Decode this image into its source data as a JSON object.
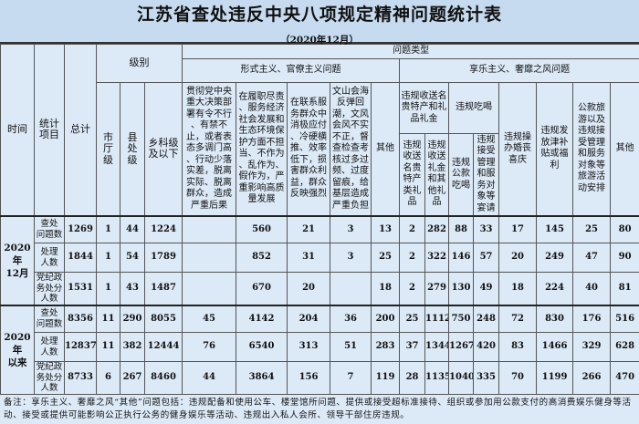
{
  "title": "江苏省查处违反中央八项规定精神问题统计表",
  "subtitle": "（2020年12月）",
  "header": {
    "time": "时间",
    "item": "统计项目",
    "total": "总计",
    "level": "级别",
    "problem_type": "问题类型",
    "formalism": "形式主义、官僚主义问题",
    "hedonism": "享乐主义、奢靡之风问题",
    "levels": [
      "市\n厅\n级",
      "县\n处\n级",
      "乡科级\n及以下"
    ],
    "formalism_cols": [
      "贯彻党中央\n重大决策部\n署有令不行\n、有禁不\n止，或者表\n态多调门高\n、行动少落\n实差，脱离\n实际、脱离\n群众，造成\n严重后果",
      "在履职尽责\n、服务经济\n社会发展和\n生态环境保\n护方面不担\n当、不作为\n、乱作为、\n假作为，严\n重影响高质\n量发展",
      "在联系服\n务群众中\n消极应付\n、冷硬横\n推、效率\n低下，损\n害群众利\n益，群众\n反映强烈",
      "文山会海\n反弹回\n潮，文风\n会风不实\n不正，督\n查检查考\n核过多过\n频、过度\n留痕，给\n基层造成\n严重负担",
      "其他"
    ],
    "gift_group": "违规收送名\n贵特产和礼\n品礼金",
    "dining_group": "违规吃喝",
    "gift_cols": [
      "违规\n收送\n名贵\n特产\n类礼\n品",
      "违规\n收送\n礼金\n和其\n他礼\n品"
    ],
    "dining_cols": [
      "违规\n公款\n吃喝",
      "违规\n接受\n管理\n和服\n务对\n象等\n宴请"
    ],
    "other_hedonism_cols": [
      "违规操\n办婚丧\n喜庆",
      "违规发\n放津补\n贴或福\n利",
      "公款旅\n游以及\n违规接\n受管理\n和服务\n对象等\n旅游活\n动安排",
      "其他"
    ]
  },
  "groups": [
    {
      "time": "2020年\n12月",
      "rows": [
        {
          "item": "查处\n问题数",
          "values": [
            "1269",
            "1",
            "44",
            "1224",
            "",
            "560",
            "21",
            "3",
            "13",
            "2",
            "282",
            "88",
            "33",
            "17",
            "145",
            "25",
            "80"
          ]
        },
        {
          "item": "处理\n人数",
          "values": [
            "1844",
            "1",
            "54",
            "1789",
            "",
            "852",
            "31",
            "3",
            "25",
            "2",
            "322",
            "146",
            "57",
            "20",
            "249",
            "47",
            "90"
          ]
        },
        {
          "item": "党纪政\n务处分\n人数",
          "values": [
            "1531",
            "1",
            "43",
            "1487",
            "",
            "670",
            "20",
            "",
            "18",
            "2",
            "279",
            "130",
            "49",
            "18",
            "224",
            "40",
            "81"
          ]
        }
      ]
    },
    {
      "time": "2020年\n以来",
      "rows": [
        {
          "item": "查处\n问题数",
          "values": [
            "8356",
            "11",
            "290",
            "8055",
            "45",
            "4142",
            "204",
            "36",
            "200",
            "25",
            "1112",
            "750",
            "248",
            "72",
            "830",
            "176",
            "516"
          ]
        },
        {
          "item": "处理\n人数",
          "values": [
            "12837",
            "11",
            "382",
            "12444",
            "76",
            "6540",
            "313",
            "51",
            "283",
            "37",
            "1344",
            "1267",
            "420",
            "83",
            "1466",
            "329",
            "628"
          ]
        },
        {
          "item": "党纪政\n务处分\n人数",
          "values": [
            "8733",
            "6",
            "267",
            "8460",
            "44",
            "3864",
            "156",
            "7",
            "119",
            "28",
            "1135",
            "1040",
            "335",
            "70",
            "1199",
            "266",
            "470"
          ]
        }
      ]
    }
  ],
  "note": "备注：享乐主义、奢靡之风“其他”问题包括：违规配备和使用公车、楼堂馆所问题、提供或接受超标准接待、组织或参加用公款支付的高消费娱乐健身等活动、接受或提供可能影响公正执行公务的健身娱乐等活动、违规出入私人会所、领导干部住房违规。",
  "colors": {
    "background": "#dce9f6",
    "title_band": "#c6dbef",
    "border": "#555555"
  }
}
